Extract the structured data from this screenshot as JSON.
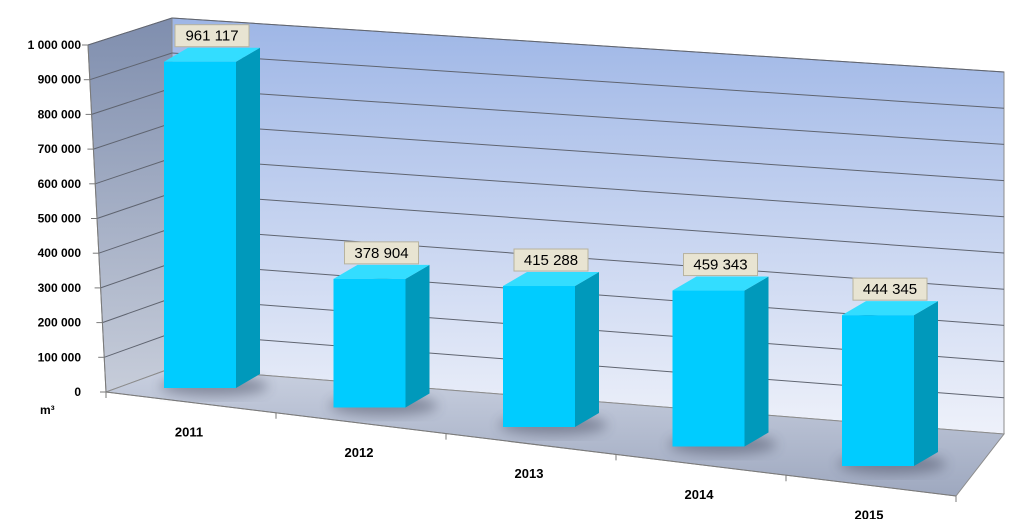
{
  "chart_data": {
    "type": "bar",
    "title": "",
    "xlabel": "",
    "ylabel": "m³",
    "ylim": [
      0,
      1000000
    ],
    "y_ticks": [
      "0",
      "100 000",
      "200 000",
      "300 000",
      "400 000",
      "500 000",
      "600 000",
      "700 000",
      "800 000",
      "900 000",
      "1 000 000"
    ],
    "categories": [
      "2011",
      "2012",
      "2013",
      "2014",
      "2015"
    ],
    "values": [
      961117,
      378904,
      415288,
      459343,
      444345
    ],
    "data_labels": [
      "961 117",
      "378 904",
      "415 288",
      "459 343",
      "444 345"
    ],
    "grid": true,
    "style": "3d",
    "colors": {
      "bar_front": "#00CCFF",
      "bar_side": "#0099BB",
      "bar_top": "#33DDFF",
      "back_wall_top": "#9EB6E6",
      "back_wall_bottom": "#EEF1FA",
      "side_wall": "#A8B4CC",
      "floor": "#B9C2D6",
      "label_bg": "#E8E4D2"
    }
  }
}
